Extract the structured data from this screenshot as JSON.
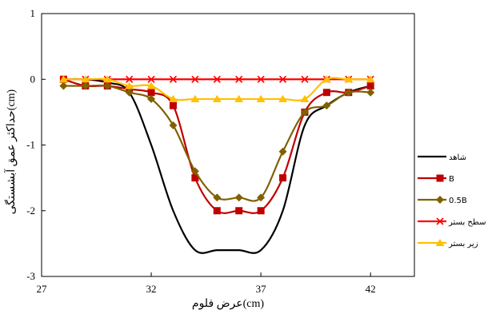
{
  "chart_data": {
    "type": "line",
    "title": "",
    "xlabel": "عرض فلوم(cm)",
    "ylabel": "حداکثر عمق آبشستگی(cm)",
    "xlim": [
      27,
      44
    ],
    "ylim": [
      -3,
      1
    ],
    "xticks": [
      27,
      32,
      37,
      42
    ],
    "yticks": [
      1,
      0,
      -1,
      -2,
      -3
    ],
    "grid": false,
    "legend_position": "right",
    "series": [
      {
        "name": "شاهد",
        "color": "#000000",
        "marker": "none",
        "smooth": true,
        "x": [
          28,
          29,
          30,
          31,
          32,
          33,
          34,
          35,
          36,
          37,
          38,
          39,
          40,
          41,
          42
        ],
        "y": [
          0,
          0,
          -0.05,
          -0.2,
          -1.0,
          -2.0,
          -2.6,
          -2.6,
          -2.6,
          -2.6,
          -2.0,
          -0.7,
          -0.4,
          -0.2,
          -0.1
        ]
      },
      {
        "name": "B",
        "color": "#c00000",
        "marker": "square",
        "smooth": true,
        "x": [
          28,
          29,
          30,
          31,
          32,
          33,
          34,
          35,
          36,
          37,
          38,
          39,
          40,
          41,
          42
        ],
        "y": [
          0,
          -0.1,
          -0.1,
          -0.15,
          -0.2,
          -0.4,
          -1.5,
          -2.0,
          -2.0,
          -2.0,
          -1.5,
          -0.5,
          -0.2,
          -0.2,
          -0.1
        ]
      },
      {
        "name": "0.5B",
        "color": "#806000",
        "marker": "diamond",
        "smooth": true,
        "x": [
          28,
          29,
          30,
          31,
          32,
          33,
          34,
          35,
          36,
          37,
          38,
          39,
          40,
          41,
          42
        ],
        "y": [
          -0.1,
          -0.1,
          -0.1,
          -0.2,
          -0.3,
          -0.7,
          -1.4,
          -1.8,
          -1.8,
          -1.8,
          -1.1,
          -0.5,
          -0.4,
          -0.2,
          -0.2
        ]
      },
      {
        "name": "سطح بستر",
        "color": "#ff0000",
        "marker": "x",
        "smooth": false,
        "x": [
          28,
          29,
          30,
          31,
          32,
          33,
          34,
          35,
          36,
          37,
          38,
          39,
          40,
          41,
          42
        ],
        "y": [
          0,
          0,
          0,
          0,
          0,
          0,
          0,
          0,
          0,
          0,
          0,
          0,
          0,
          0,
          0
        ]
      },
      {
        "name": "زیر بستر",
        "color": "#ffc000",
        "marker": "triangle",
        "smooth": true,
        "x": [
          28,
          29,
          30,
          31,
          32,
          33,
          34,
          35,
          36,
          37,
          38,
          39,
          40,
          41,
          42
        ],
        "y": [
          0,
          0,
          0,
          -0.1,
          -0.1,
          -0.3,
          -0.3,
          -0.3,
          -0.3,
          -0.3,
          -0.3,
          -0.3,
          0,
          0,
          0
        ]
      }
    ]
  }
}
